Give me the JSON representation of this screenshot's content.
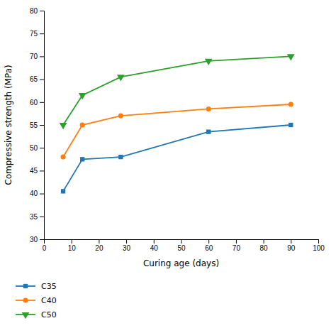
{
  "chart_data": {
    "type": "line",
    "xlabel": "Curing age (days)",
    "ylabel": "Compressive strength (MPa)",
    "x": [
      7,
      14,
      28,
      60,
      90
    ],
    "series": [
      {
        "name": "C35",
        "marker": "square",
        "values": [
          40.5,
          47.5,
          48.0,
          53.5,
          55.0
        ]
      },
      {
        "name": "C40",
        "marker": "circle",
        "values": [
          48.0,
          55.0,
          57.0,
          58.5,
          59.5
        ]
      },
      {
        "name": "C50",
        "marker": "triangle-down",
        "values": [
          55.0,
          61.5,
          65.5,
          69.0,
          70.0
        ]
      }
    ],
    "xlim": [
      0,
      100
    ],
    "ylim": [
      30,
      80
    ],
    "xticks": [
      0,
      10,
      20,
      30,
      40,
      50,
      60,
      70,
      80,
      90,
      100
    ],
    "yticks": [
      30,
      35,
      40,
      45,
      50,
      55,
      60,
      65,
      70,
      75,
      80
    ],
    "legend": "bottom"
  }
}
